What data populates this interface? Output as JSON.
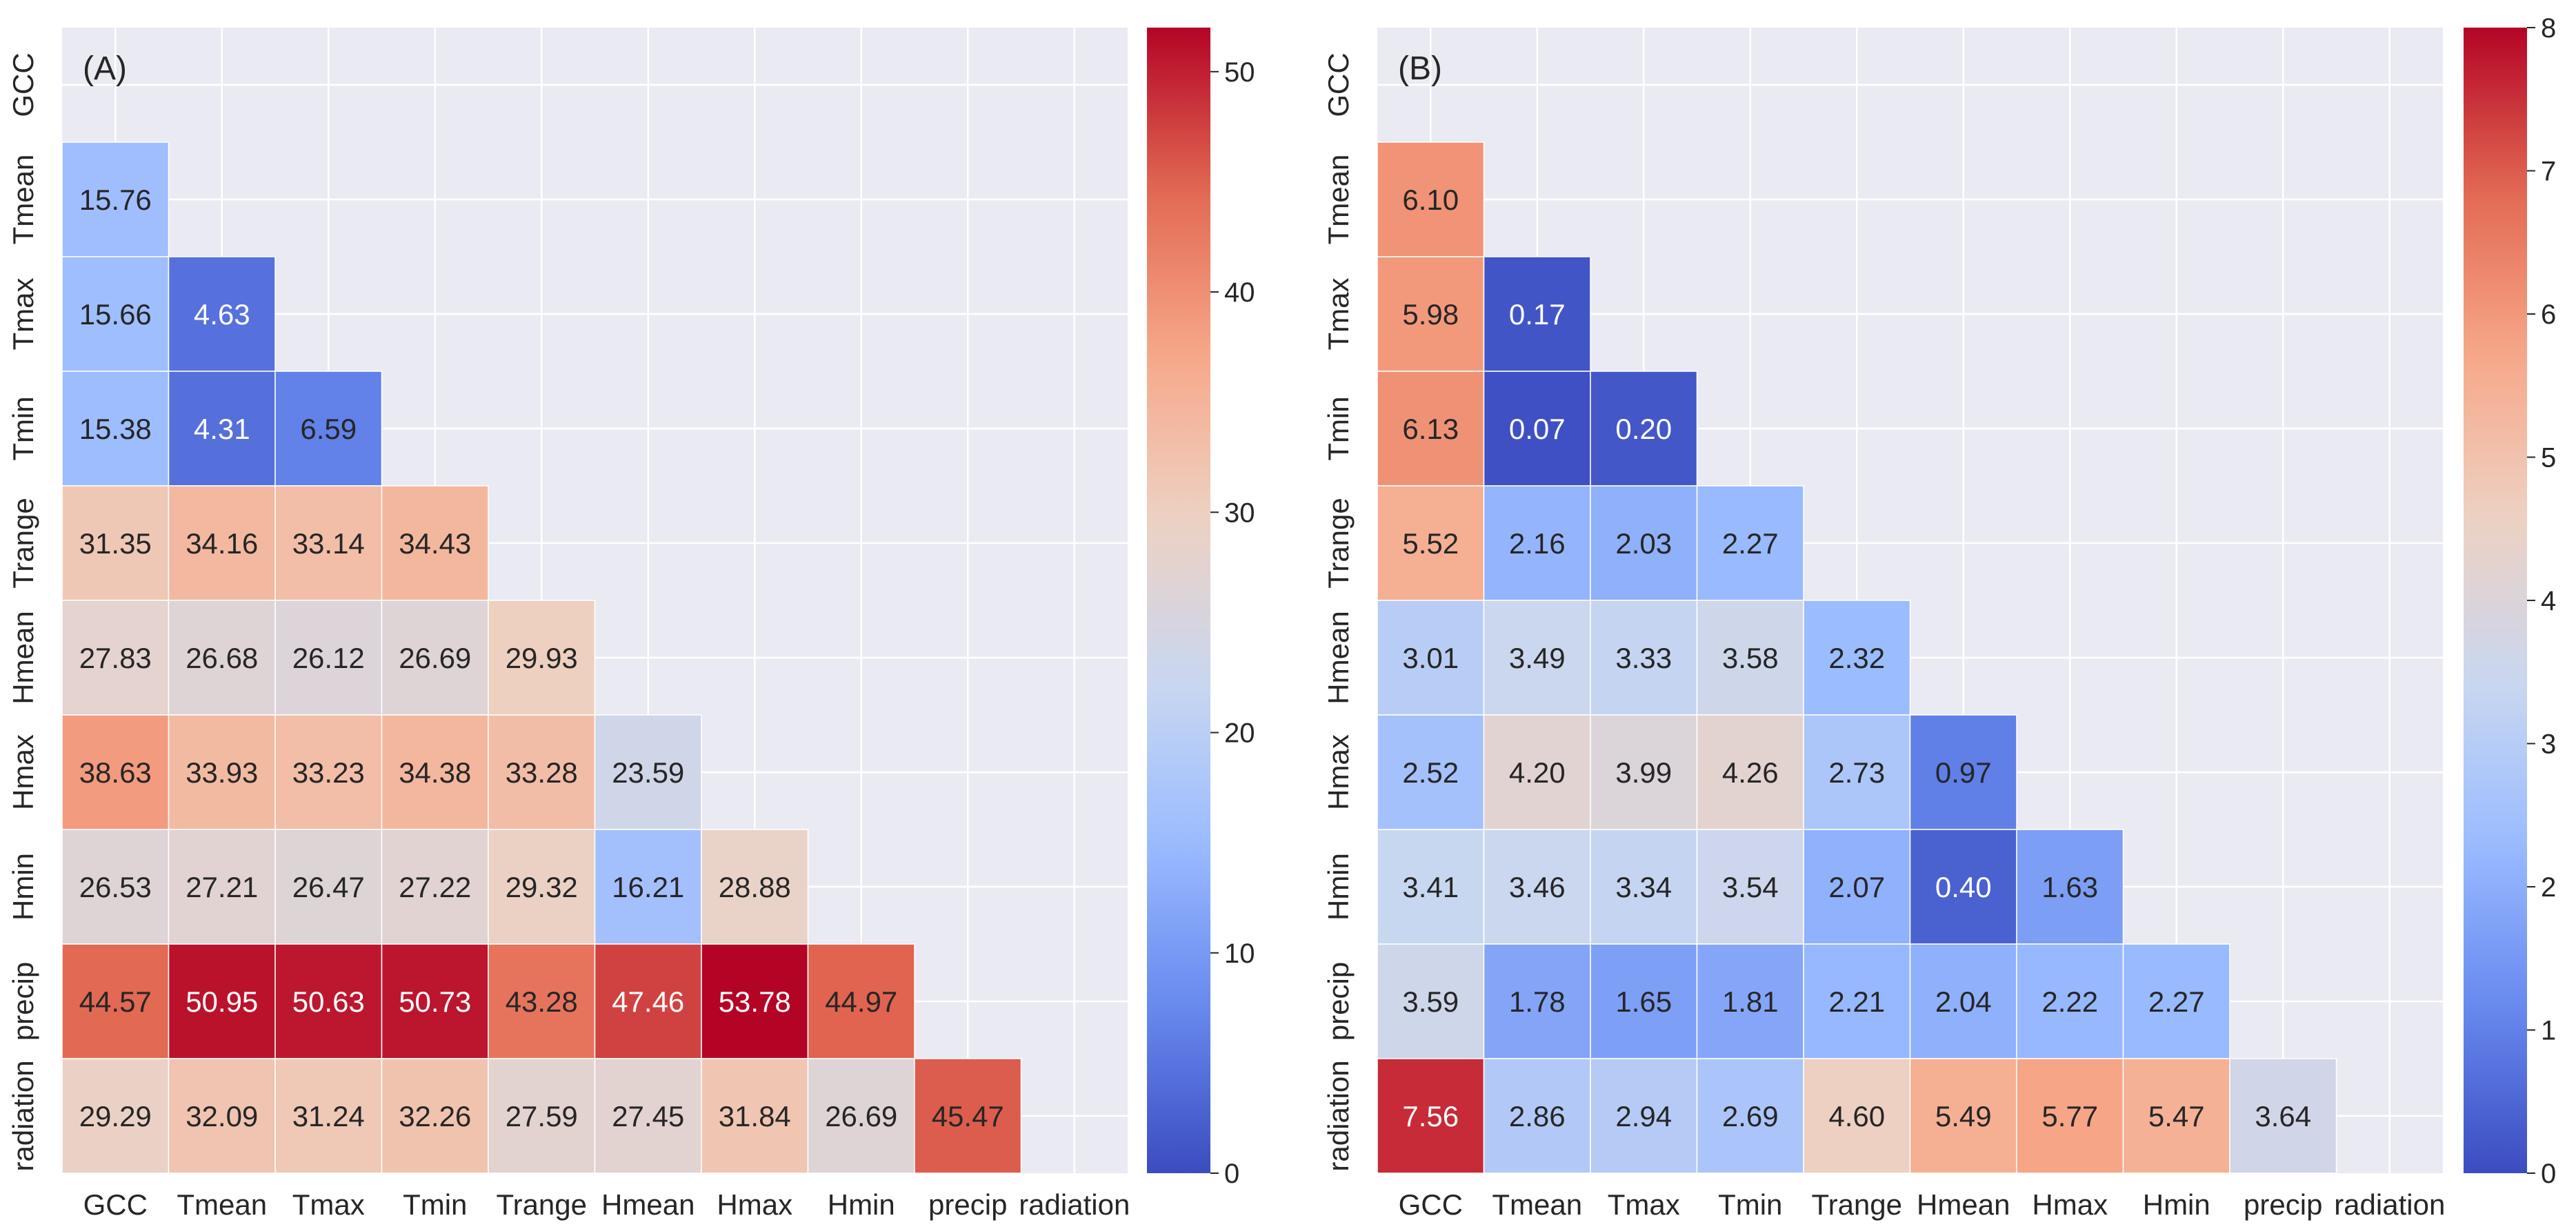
{
  "colors": {
    "background": "#ffffff",
    "axes_face": "#eaeaf2",
    "grid": "#ffffff",
    "text_dark": "#262626",
    "cmap": [
      "#3b4cc0",
      "#6788ee",
      "#9abbff",
      "#c9d7f0",
      "#edd1c2",
      "#f7a889",
      "#e26952",
      "#b40426"
    ]
  },
  "chart_data": [
    {
      "type": "heatmap",
      "panel": "A",
      "panel_label": "(A)",
      "categories": [
        "GCC",
        "Tmean",
        "Tmax",
        "Tmin",
        "Trange",
        "Hmean",
        "Hmax",
        "Hmin",
        "precip",
        "radiation"
      ],
      "mask": "upper-triangle-and-diagonal",
      "value_format": "2dp",
      "values": [
        [
          null,
          null,
          null,
          null,
          null,
          null,
          null,
          null,
          null,
          null
        ],
        [
          15.76,
          null,
          null,
          null,
          null,
          null,
          null,
          null,
          null,
          null
        ],
        [
          15.66,
          4.63,
          null,
          null,
          null,
          null,
          null,
          null,
          null,
          null
        ],
        [
          15.38,
          4.31,
          6.59,
          null,
          null,
          null,
          null,
          null,
          null,
          null
        ],
        [
          31.35,
          34.16,
          33.14,
          34.43,
          null,
          null,
          null,
          null,
          null,
          null
        ],
        [
          27.83,
          26.68,
          26.12,
          26.69,
          29.93,
          null,
          null,
          null,
          null,
          null
        ],
        [
          38.63,
          33.93,
          33.23,
          34.38,
          33.28,
          23.59,
          null,
          null,
          null,
          null
        ],
        [
          26.53,
          27.21,
          26.47,
          27.22,
          29.32,
          16.21,
          28.88,
          null,
          null,
          null
        ],
        [
          44.57,
          50.95,
          50.63,
          50.73,
          43.28,
          47.46,
          53.78,
          44.97,
          null,
          null
        ],
        [
          29.29,
          32.09,
          31.24,
          32.26,
          27.59,
          27.45,
          31.84,
          26.69,
          45.47,
          null
        ]
      ],
      "colorbar": {
        "vmin": 0,
        "vmax": 52,
        "ticks": [
          0,
          10,
          20,
          30,
          40,
          50
        ]
      }
    },
    {
      "type": "heatmap",
      "panel": "B",
      "panel_label": "(B)",
      "categories": [
        "GCC",
        "Tmean",
        "Tmax",
        "Tmin",
        "Trange",
        "Hmean",
        "Hmax",
        "Hmin",
        "precip",
        "radiation"
      ],
      "mask": "upper-triangle-and-diagonal",
      "value_format": "2dp",
      "values": [
        [
          null,
          null,
          null,
          null,
          null,
          null,
          null,
          null,
          null,
          null
        ],
        [
          6.1,
          null,
          null,
          null,
          null,
          null,
          null,
          null,
          null,
          null
        ],
        [
          5.98,
          0.17,
          null,
          null,
          null,
          null,
          null,
          null,
          null,
          null
        ],
        [
          6.13,
          0.07,
          0.2,
          null,
          null,
          null,
          null,
          null,
          null,
          null
        ],
        [
          5.52,
          2.16,
          2.03,
          2.27,
          null,
          null,
          null,
          null,
          null,
          null
        ],
        [
          3.01,
          3.49,
          3.33,
          3.58,
          2.32,
          null,
          null,
          null,
          null,
          null
        ],
        [
          2.52,
          4.2,
          3.99,
          4.26,
          2.73,
          0.97,
          null,
          null,
          null,
          null
        ],
        [
          3.41,
          3.46,
          3.34,
          3.54,
          2.07,
          0.4,
          1.63,
          null,
          null,
          null
        ],
        [
          3.59,
          1.78,
          1.65,
          1.81,
          2.21,
          2.04,
          2.22,
          2.27,
          null,
          null
        ],
        [
          7.56,
          2.86,
          2.94,
          2.69,
          4.6,
          5.49,
          5.77,
          5.47,
          3.64,
          null
        ]
      ],
      "colorbar": {
        "vmin": 0,
        "vmax": 8,
        "ticks": [
          0,
          1,
          2,
          3,
          4,
          5,
          6,
          7,
          8
        ]
      }
    }
  ]
}
